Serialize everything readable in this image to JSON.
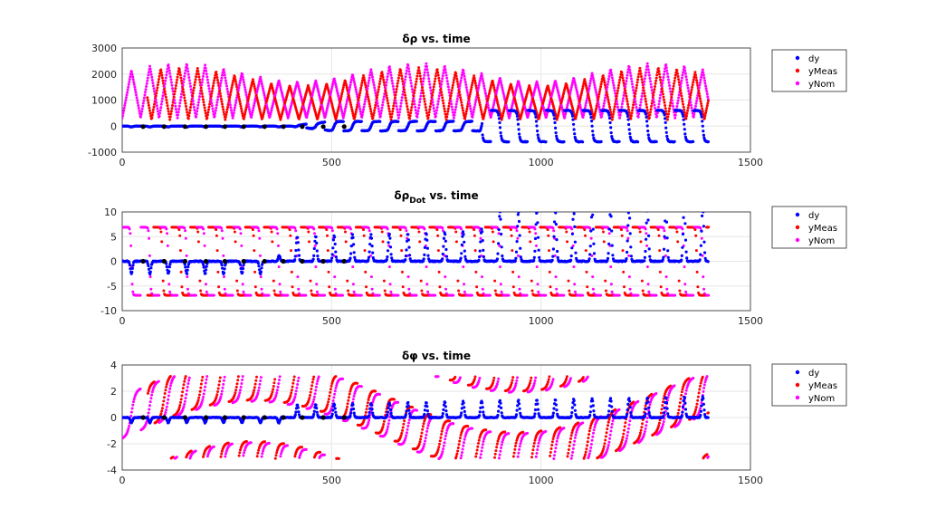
{
  "chart_data": [
    {
      "type": "scatter",
      "title": "δρ vs. time",
      "xlim": [
        0,
        1500
      ],
      "ylim": [
        -1000,
        3000
      ],
      "xticks": [
        "0",
        "500",
        "1000",
        "1500"
      ],
      "yticks": [
        "-1000",
        "0",
        "1000",
        "2000",
        "3000"
      ],
      "grid": true,
      "legend_placement": "outside-top-right",
      "x_range": [
        0,
        1400
      ],
      "series": [
        {
          "name": "dy",
          "color": "#0000ff",
          "description_of_values": "near 0 with small dips for t<400; ramps to ~±300 at 400-850; sawtooth between ~-600 and ~+600 for t>850",
          "envelope": [
            [
              0,
              0
            ],
            [
              400,
              0
            ],
            [
              500,
              300
            ],
            [
              850,
              300
            ],
            [
              860,
              600
            ],
            [
              1400,
              600
            ]
          ]
        },
        {
          "name": "yMeas",
          "color": "#ff0000",
          "description_of_values": "triangular wave between ~200 and ~2100 with period ~50",
          "range": [
            200,
            2100
          ]
        },
        {
          "name": "yNom",
          "color": "#ff00ff",
          "description_of_values": "triangular wave between ~200 and ~2300, closely overlapping yMeas",
          "range": [
            200,
            2300
          ]
        },
        {
          "name": "",
          "color": "#000000",
          "markers_x": [
            50,
            100,
            150,
            200,
            245,
            290,
            340,
            385,
            430,
            480,
            530
          ]
        }
      ]
    },
    {
      "type": "scatter",
      "title_main": "δρ",
      "title_sub": "Dot",
      "title_rest": " vs. time",
      "xlim": [
        0,
        1500
      ],
      "ylim": [
        -10,
        10
      ],
      "xticks": [
        "0",
        "500",
        "1000",
        "1500"
      ],
      "yticks": [
        "-10",
        "-5",
        "0",
        "5",
        "10"
      ],
      "grid": true,
      "legend_placement": "outside-top-right",
      "series": [
        {
          "name": "dy",
          "color": "#0000ff",
          "description_of_values": "~0 baseline with dips to ~-2.5 for t<350; spikes rising to ~5 at t≈400-850 and ~10 at t>850",
          "spike_height": [
            [
              0,
              -2.5
            ],
            [
              350,
              -2.5
            ],
            [
              400,
              5
            ],
            [
              850,
              6
            ],
            [
              900,
              10
            ],
            [
              1400,
              11
            ]
          ]
        },
        {
          "name": "yMeas",
          "color": "#ff0000",
          "description_of_values": "switches between ~+7 and ~-7 with period ~50"
        },
        {
          "name": "yNom",
          "color": "#ff00ff",
          "description_of_values": "switches between ~+7 and ~-7 with period ~50, overlapping yMeas"
        },
        {
          "name": "",
          "color": "#000000",
          "markers_x": [
            50,
            100,
            150,
            200,
            245,
            290,
            340,
            385,
            430,
            480,
            530
          ]
        }
      ]
    },
    {
      "type": "scatter",
      "title": "δφ vs. time",
      "xlim": [
        0,
        1500
      ],
      "ylim": [
        -4,
        4
      ],
      "xticks": [
        "0",
        "500",
        "1000",
        "1500"
      ],
      "yticks": [
        "-4",
        "-2",
        "0",
        "2",
        "4"
      ],
      "grid": true,
      "legend_placement": "outside-top-right",
      "series": [
        {
          "name": "dy",
          "color": "#0000ff",
          "description_of_values": "~0 with small spikes to ~1 after t≈400, rising to ~1.7 near t=1400"
        },
        {
          "name": "yMeas",
          "color": "#ff0000",
          "description_of_values": "phase-wrapped curves between -π and π, rising sawtooth segments"
        },
        {
          "name": "yNom",
          "color": "#ff00ff",
          "description_of_values": "phase-wrapped curves between -π and π, overlapping yMeas"
        },
        {
          "name": "",
          "color": "#000000",
          "markers_x": [
            50,
            100,
            150,
            200,
            245,
            290,
            340,
            385,
            430,
            480,
            530
          ]
        }
      ]
    }
  ],
  "legend": {
    "items": [
      "dy",
      "yMeas",
      "yNom"
    ],
    "colors": [
      "#0000ff",
      "#ff0000",
      "#ff00ff"
    ]
  }
}
